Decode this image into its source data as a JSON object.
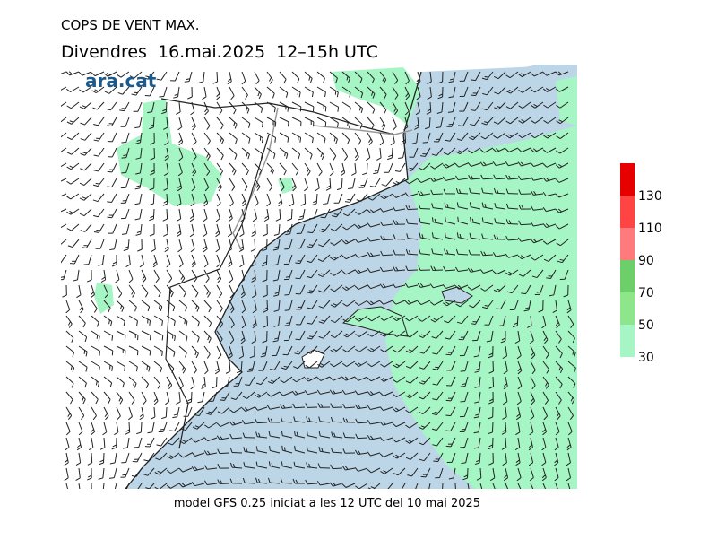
{
  "title": "COPS DE VENT MAX.",
  "subtitle": "Divendres  16.mai.2025  12–15h UTC",
  "logo": "ara.cat",
  "footer": "model GFS 0.25 iniciat a les 12 UTC del 10 mai 2025",
  "legend": {
    "ticks": [
      30,
      50,
      70,
      90,
      110,
      130
    ],
    "colors": [
      "#a6f5c4",
      "#8ee68a",
      "#6ccf6a",
      "#ff7a7a",
      "#ff4444",
      "#e60000"
    ]
  }
}
